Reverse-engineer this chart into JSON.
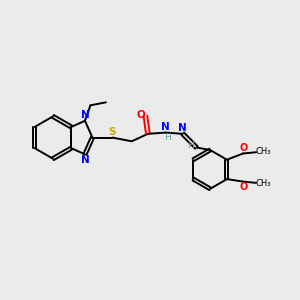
{
  "background_color": "#ebebeb",
  "bond_color": "#000000",
  "N_color": "#0000ff",
  "S_color": "#ccaa00",
  "O_color": "#ff0000",
  "CH_color": "#5f9ea0",
  "fig_width": 3.0,
  "fig_height": 3.0,
  "dpi": 100,
  "xlim": [
    0,
    12
  ],
  "ylim": [
    0,
    10
  ]
}
